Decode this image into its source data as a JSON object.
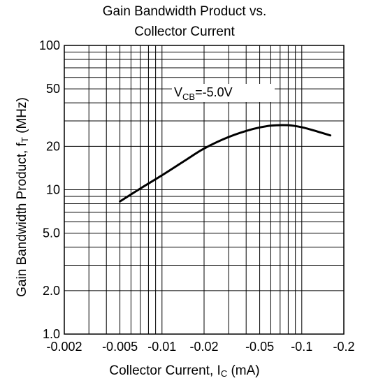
{
  "chart_data": {
    "type": "line",
    "title_line1": "Gain Bandwidth Product vs.",
    "title_line2": "Collector Current",
    "ylabel_main": "Gain Bandwidth Product, f",
    "ylabel_sub": "T",
    "ylabel_unit": " (MHz)",
    "xlabel_main": "Collector Current, I",
    "xlabel_sub": "C",
    "xlabel_unit": " (mA)",
    "x_scale": "log",
    "y_scale": "log",
    "xlim": [
      -0.002,
      -0.2
    ],
    "ylim": [
      1.0,
      100
    ],
    "grid": true,
    "x_ticks": [
      {
        "value": 0.002,
        "label": "-0.002"
      },
      {
        "value": 0.005,
        "label": "-0.005"
      },
      {
        "value": 0.01,
        "label": "-0.01"
      },
      {
        "value": 0.02,
        "label": "-0.02"
      },
      {
        "value": 0.05,
        "label": "-0.05"
      },
      {
        "value": 0.1,
        "label": "-0.1"
      },
      {
        "value": 0.2,
        "label": "-0.2"
      }
    ],
    "y_ticks": [
      {
        "value": 1,
        "label": "1.0"
      },
      {
        "value": 2,
        "label": "2.0"
      },
      {
        "value": 5,
        "label": "5.0"
      },
      {
        "value": 10,
        "label": "10"
      },
      {
        "value": 20,
        "label": "20"
      },
      {
        "value": 50,
        "label": "50"
      },
      {
        "value": 100,
        "label": "100"
      }
    ],
    "annotation": {
      "prefix": "V",
      "sub": "CB",
      "suffix": "=-5.0V"
    },
    "series": [
      {
        "x": [
          -0.005,
          -0.007,
          -0.01,
          -0.015,
          -0.02,
          -0.03,
          -0.045,
          -0.06,
          -0.08,
          -0.1,
          -0.13,
          -0.16
        ],
        "y": [
          8.3,
          10.2,
          12.6,
          16.2,
          19.3,
          23.2,
          26.4,
          27.8,
          28.0,
          27.1,
          25.3,
          23.8
        ]
      }
    ]
  }
}
